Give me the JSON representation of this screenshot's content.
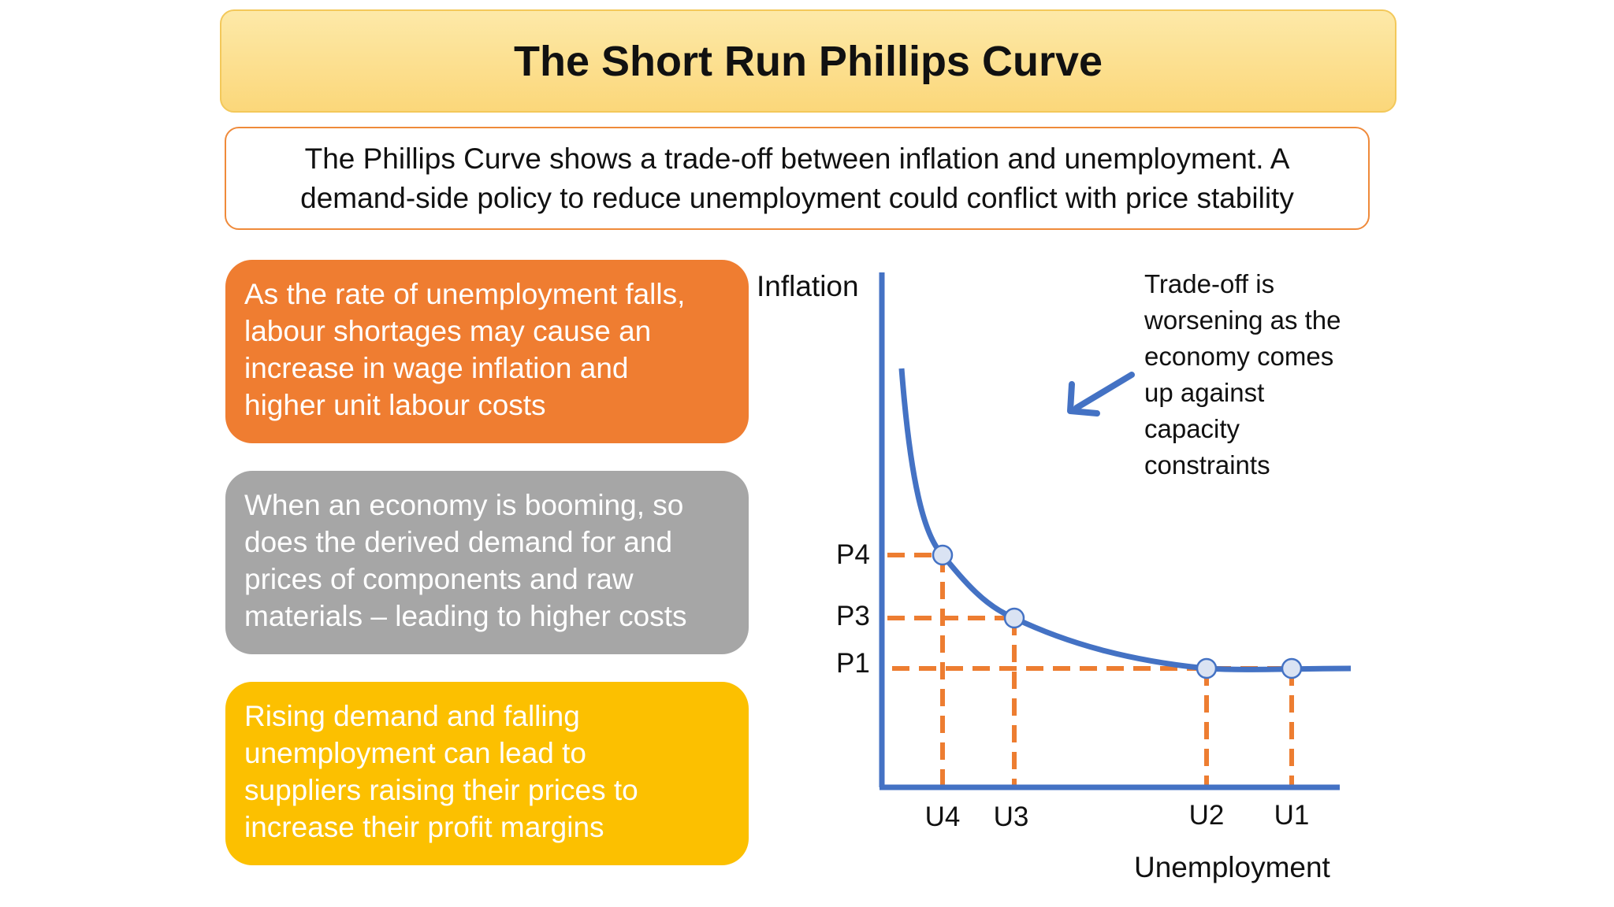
{
  "title": "The Short Run Phillips Curve",
  "intro": {
    "lines": [
      "The Phillips Curve shows a trade-off between inflation and unemployment. A",
      "demand-side policy to reduce unemployment could conflict with price stability"
    ]
  },
  "cards": [
    {
      "color": "#ef7d31",
      "lines": [
        "As the rate of unemployment falls,",
        "labour shortages may cause an",
        "increase in wage inflation and",
        "higher unit labour costs"
      ]
    },
    {
      "color": "#a6a6a6",
      "lines": [
        "When an economy is booming, so",
        "does the derived demand for and",
        "prices of components and raw",
        "materials – leading to higher costs"
      ]
    },
    {
      "color": "#fcc000",
      "lines": [
        "Rising demand and falling",
        "unemployment can lead to",
        "suppliers raising their prices to",
        "increase their profit margins"
      ]
    }
  ],
  "chart_data": {
    "type": "line",
    "xlabel": "Unemployment",
    "ylabel": "Inflation",
    "axis_color": "#4472c4",
    "curve_color": "#4472c4",
    "guide_color": "#ed7d31",
    "points": [
      {
        "x_label": "U4",
        "y_label": "P4"
      },
      {
        "x_label": "U3",
        "y_label": "P3"
      },
      {
        "x_label": "U2",
        "y_label": "P1"
      },
      {
        "x_label": "U1",
        "y_label": "P1"
      }
    ],
    "y_tick_labels": [
      "P4",
      "P3",
      "P1"
    ],
    "x_tick_labels": [
      "U4",
      "U3",
      "U2",
      "U1"
    ],
    "annotation": {
      "lines": [
        "Trade-off is",
        "worsening as the",
        "economy comes",
        "up against",
        "capacity",
        "constraints"
      ],
      "arrow_icon": "arrow-down-left-icon"
    }
  }
}
